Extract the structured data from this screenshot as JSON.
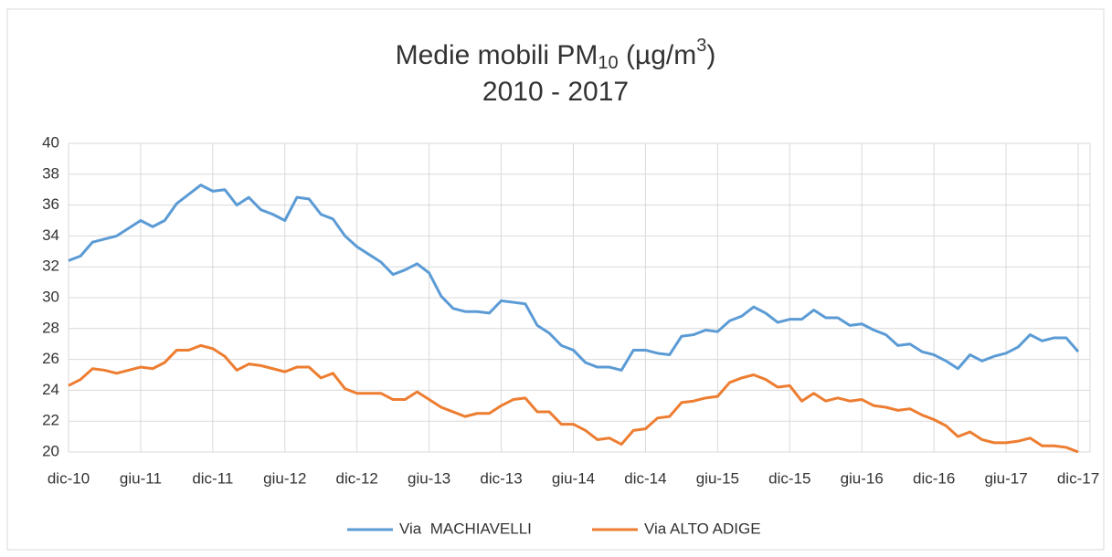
{
  "chart_data": {
    "type": "line",
    "title_parts": [
      "Medie mobili PM",
      "10",
      " (µg/m",
      "3",
      ")"
    ],
    "subtitle": "2010 - 2017",
    "categories": [
      "dic-10",
      null,
      null,
      null,
      null,
      null,
      "giu-11",
      null,
      null,
      null,
      null,
      null,
      "dic-11",
      null,
      null,
      null,
      null,
      null,
      "giu-12",
      null,
      null,
      null,
      null,
      null,
      "dic-12",
      null,
      null,
      null,
      null,
      null,
      "giu-13",
      null,
      null,
      null,
      null,
      null,
      "dic-13",
      null,
      null,
      null,
      null,
      null,
      "giu-14",
      null,
      null,
      null,
      null,
      null,
      "dic-14",
      null,
      null,
      null,
      null,
      null,
      "giu-15",
      null,
      null,
      null,
      null,
      null,
      "dic-15",
      null,
      null,
      null,
      null,
      null,
      "giu-16",
      null,
      null,
      null,
      null,
      null,
      "dic-16",
      null,
      null,
      null,
      null,
      null,
      "giu-17",
      null,
      null,
      null,
      null,
      null,
      "dic-17"
    ],
    "series": [
      {
        "name": "Via  MACHIAVELLI",
        "color": "#5b9bd5",
        "values": [
          32.4,
          32.7,
          33.6,
          33.8,
          34.0,
          34.5,
          35.0,
          34.6,
          35.0,
          36.1,
          36.7,
          37.3,
          36.9,
          37.0,
          36.0,
          36.5,
          35.7,
          35.4,
          35.0,
          36.5,
          36.4,
          35.4,
          35.1,
          34.0,
          33.3,
          32.8,
          32.3,
          31.5,
          31.8,
          32.2,
          31.6,
          30.1,
          29.3,
          29.1,
          29.1,
          29.0,
          29.8,
          29.7,
          29.6,
          28.2,
          27.7,
          26.9,
          26.6,
          25.8,
          25.5,
          25.5,
          25.3,
          26.6,
          26.6,
          26.4,
          26.3,
          27.5,
          27.6,
          27.9,
          27.8,
          28.5,
          28.8,
          29.4,
          29.0,
          28.4,
          28.6,
          28.6,
          29.2,
          28.7,
          28.7,
          28.2,
          28.3,
          27.9,
          27.6,
          26.9,
          27.0,
          26.5,
          26.3,
          25.9,
          25.4,
          26.3,
          25.9,
          26.2,
          26.4,
          26.8,
          27.6,
          27.2,
          27.4,
          27.4,
          26.5
        ]
      },
      {
        "name": "Via ALTO ADIGE",
        "color": "#ed7d31",
        "values": [
          24.3,
          24.7,
          25.4,
          25.3,
          25.1,
          25.3,
          25.5,
          25.4,
          25.8,
          26.6,
          26.6,
          26.9,
          26.7,
          26.2,
          25.3,
          25.7,
          25.6,
          25.4,
          25.2,
          25.5,
          25.5,
          24.8,
          25.1,
          24.1,
          23.8,
          23.8,
          23.8,
          23.4,
          23.4,
          23.9,
          23.4,
          22.9,
          22.6,
          22.3,
          22.5,
          22.5,
          23.0,
          23.4,
          23.5,
          22.6,
          22.6,
          21.8,
          21.8,
          21.4,
          20.8,
          20.9,
          20.5,
          21.4,
          21.5,
          22.2,
          22.3,
          23.2,
          23.3,
          23.5,
          23.6,
          24.5,
          24.8,
          25.0,
          24.7,
          24.2,
          24.3,
          23.3,
          23.8,
          23.3,
          23.5,
          23.3,
          23.4,
          23.0,
          22.9,
          22.7,
          22.8,
          22.4,
          22.1,
          21.7,
          21.0,
          21.3,
          20.8,
          20.6,
          20.6,
          20.7,
          20.9,
          20.4,
          20.4,
          20.3,
          20.0
        ]
      }
    ],
    "ylim": [
      20,
      40
    ],
    "yticks": [
      20,
      22,
      24,
      26,
      28,
      30,
      32,
      34,
      36,
      38,
      40
    ],
    "grid": true,
    "legend": "bottom"
  }
}
